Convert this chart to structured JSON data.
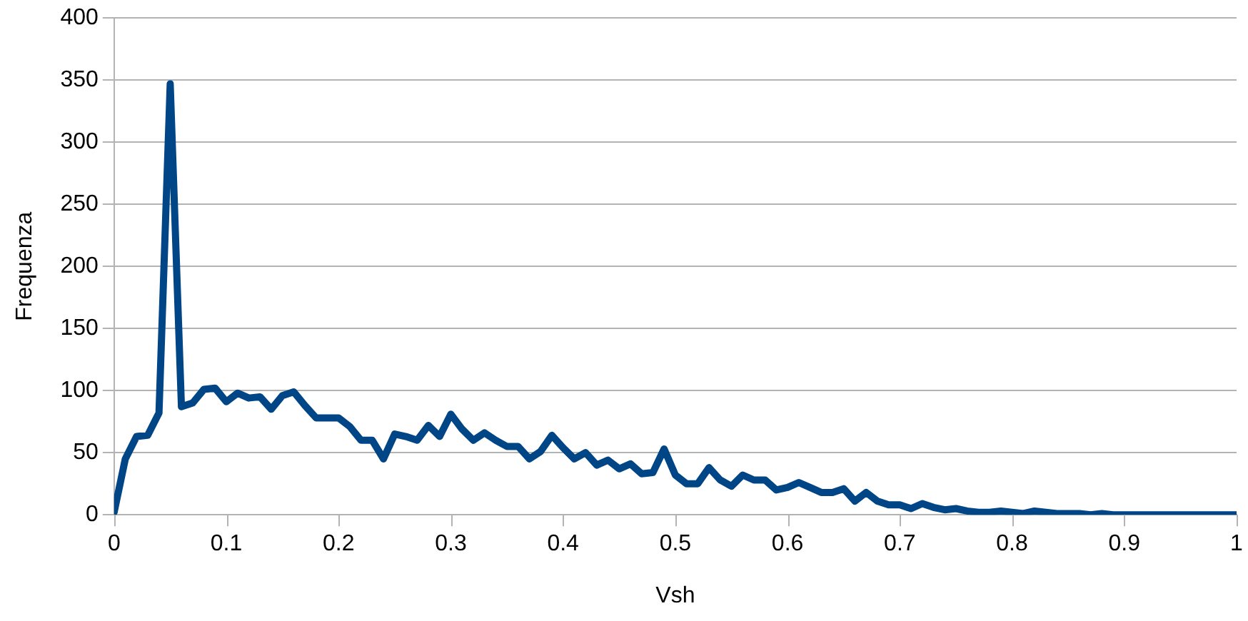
{
  "chart_data": {
    "type": "line",
    "xlabel": "Vsh",
    "ylabel": "Frequenza",
    "x": [
      0,
      0.01,
      0.02,
      0.03,
      0.04,
      0.05,
      0.06,
      0.07,
      0.08,
      0.09,
      0.1,
      0.11,
      0.12,
      0.13,
      0.14,
      0.15,
      0.16,
      0.17,
      0.18,
      0.19,
      0.2,
      0.21,
      0.22,
      0.23,
      0.24,
      0.25,
      0.26,
      0.27,
      0.28,
      0.29,
      0.3,
      0.31,
      0.32,
      0.33,
      0.34,
      0.35,
      0.36,
      0.37,
      0.38,
      0.39,
      0.4,
      0.41,
      0.42,
      0.43,
      0.44,
      0.45,
      0.46,
      0.47,
      0.48,
      0.49,
      0.5,
      0.51,
      0.52,
      0.53,
      0.54,
      0.55,
      0.56,
      0.57,
      0.58,
      0.59,
      0.6,
      0.61,
      0.62,
      0.63,
      0.64,
      0.65,
      0.66,
      0.67,
      0.68,
      0.69,
      0.7,
      0.71,
      0.72,
      0.73,
      0.74,
      0.75,
      0.76,
      0.77,
      0.78,
      0.79,
      0.8,
      0.81,
      0.82,
      0.83,
      0.84,
      0.85,
      0.86,
      0.87,
      0.88,
      0.89,
      0.9,
      0.91,
      0.92,
      0.93,
      0.94,
      0.95,
      0.96,
      0.97,
      0.98,
      0.99,
      1
    ],
    "series": [
      {
        "color": "#004586",
        "values": [
          2,
          45,
          63,
          64,
          82,
          347,
          87,
          90,
          101,
          102,
          91,
          98,
          94,
          95,
          85,
          96,
          99,
          88,
          78,
          78,
          78,
          71,
          60,
          60,
          45,
          65,
          63,
          60,
          72,
          63,
          81,
          69,
          60,
          66,
          60,
          55,
          55,
          45,
          51,
          64,
          54,
          45,
          50,
          40,
          44,
          37,
          41,
          33,
          34,
          53,
          32,
          25,
          25,
          38,
          28,
          23,
          32,
          28,
          28,
          20,
          22,
          26,
          22,
          18,
          18,
          21,
          11,
          18,
          11,
          8,
          8,
          5,
          9,
          6,
          4,
          5,
          3,
          2,
          2,
          3,
          2,
          1,
          3,
          2,
          1,
          1,
          1,
          0,
          1,
          0,
          0,
          0,
          0,
          0,
          0,
          0,
          0,
          0,
          0,
          0,
          0
        ]
      }
    ],
    "xlim": [
      0,
      1
    ],
    "xticks": [
      0,
      0.1,
      0.2,
      0.3,
      0.4,
      0.5,
      0.6,
      0.7,
      0.8,
      0.9,
      1
    ],
    "ylim": [
      0,
      400
    ],
    "yticks": [
      0,
      50,
      100,
      150,
      200,
      250,
      300,
      350,
      400
    ],
    "grid": "y",
    "legend": false,
    "marker": "none",
    "line_style": "solid"
  }
}
